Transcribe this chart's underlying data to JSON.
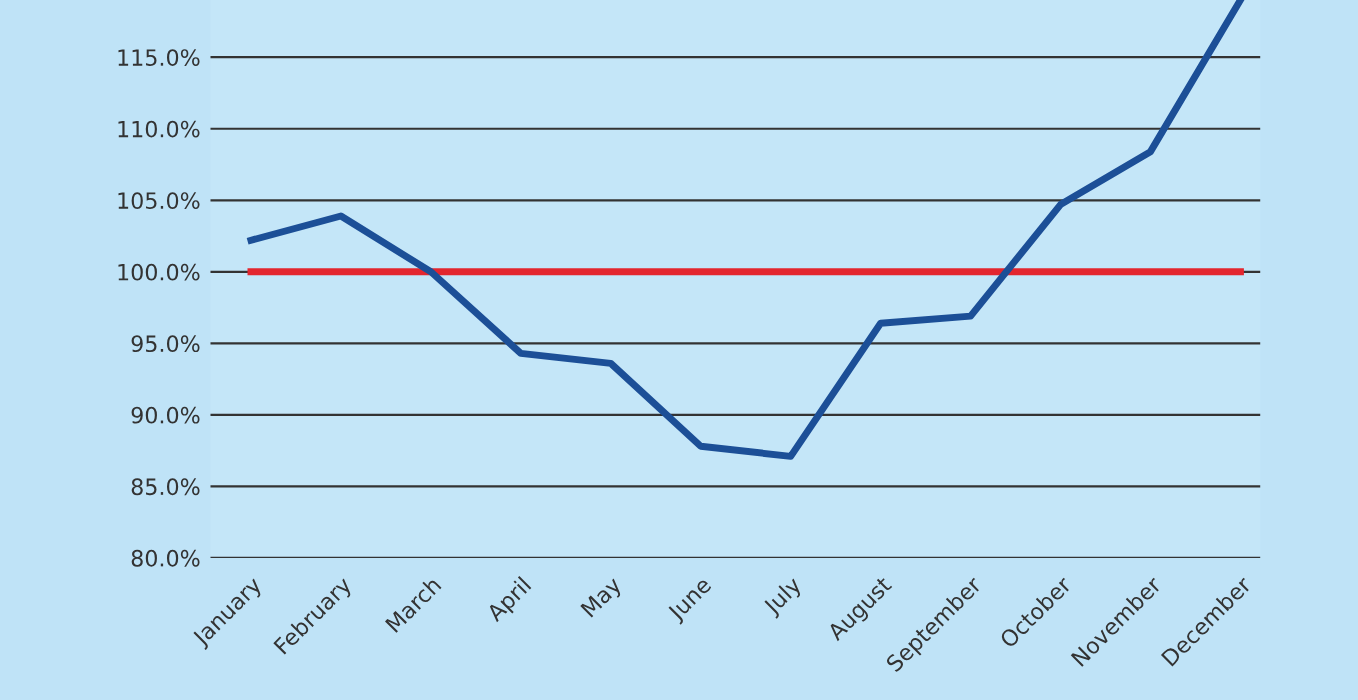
{
  "chart_data": {
    "type": "line",
    "categories": [
      "January",
      "February",
      "March",
      "April",
      "May",
      "June",
      "July",
      "August",
      "September",
      "October",
      "November",
      "December"
    ],
    "series": [
      {
        "color": "#1c4f97",
        "values": [
          102.2,
          103.9,
          100.0,
          94.3,
          93.6,
          87.8,
          87.1,
          96.4,
          96.9,
          104.7,
          108.4,
          119.0
        ]
      }
    ],
    "ylim": [
      80,
      119
    ],
    "yticks": [
      {
        "value": 80,
        "label": "80.0%"
      },
      {
        "value": 85,
        "label": "85.0%"
      },
      {
        "value": 90,
        "label": "90.0%"
      },
      {
        "value": 95,
        "label": "95.0%"
      },
      {
        "value": 100,
        "label": "100.0%"
      },
      {
        "value": 105,
        "label": "105.0%"
      },
      {
        "value": 110,
        "label": "110.0%"
      },
      {
        "value": 115,
        "label": "115.0%"
      }
    ],
    "ref_lines": [
      {
        "axis": "y",
        "value": 100,
        "label": null,
        "color": "#e3262e"
      }
    ],
    "grid": "y",
    "legend": false,
    "marker": "none",
    "line_style": "solid"
  }
}
